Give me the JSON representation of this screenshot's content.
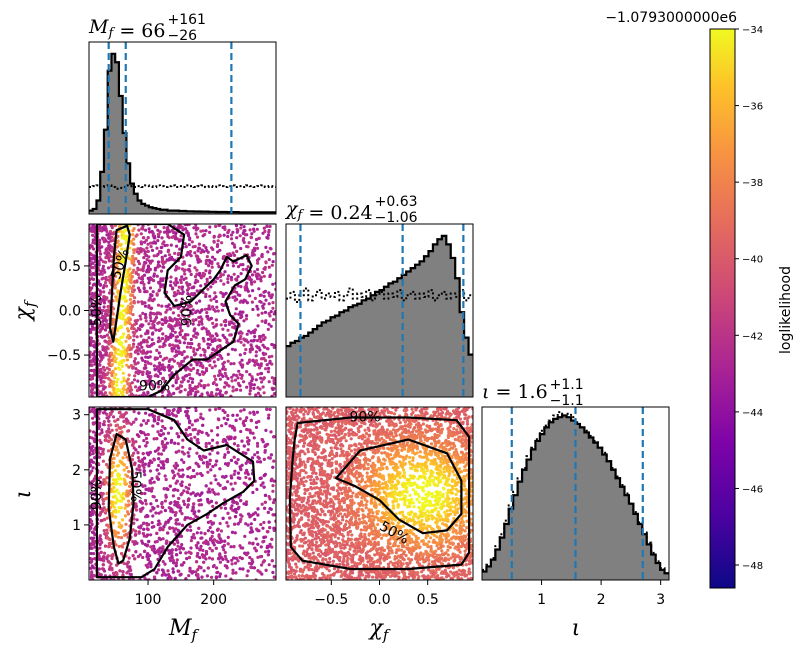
{
  "chart_data": {
    "type": "scatter",
    "description": "corner plot",
    "parameters": [
      {
        "key": "Mf",
        "label": "M_f",
        "range": [
          10,
          295
        ],
        "ticks": [
          100,
          200
        ],
        "tick_labels": [
          "100",
          "200"
        ],
        "title": {
          "name": "M_f",
          "median": "66",
          "plus": "+161",
          "minus": "−26"
        },
        "quantiles": [
          40,
          66,
          227
        ]
      },
      {
        "key": "chif",
        "label": "χ_f",
        "range": [
          -0.97,
          0.97
        ],
        "ticks": [
          -0.5,
          0.0,
          0.5
        ],
        "tick_labels": [
          "−0.5",
          "0.0",
          "0.5"
        ],
        "title": {
          "name": "χ_f",
          "median": "0.24",
          "plus": "+0.63",
          "minus": "−1.06"
        },
        "quantiles": [
          -0.82,
          0.24,
          0.87
        ]
      },
      {
        "key": "iota",
        "label": "ι",
        "range": [
          0,
          3.14
        ],
        "ticks": [
          1,
          2,
          3
        ],
        "tick_labels": [
          "1",
          "2",
          "3"
        ],
        "title": {
          "name": "ι",
          "median": "1.6",
          "plus": "+1.1",
          "minus": "−1.1"
        },
        "quantiles": [
          0.5,
          1.57,
          2.7
        ]
      }
    ],
    "histograms": {
      "Mf": {
        "posterior": [
          0.02,
          0.03,
          0.08,
          0.25,
          0.5,
          0.85,
          0.95,
          0.9,
          0.7,
          0.48,
          0.3,
          0.18,
          0.12,
          0.08,
          0.06,
          0.05,
          0.04,
          0.035,
          0.03,
          0.025,
          0.025,
          0.02,
          0.02,
          0.02,
          0.018,
          0.018,
          0.016,
          0.016,
          0.015,
          0.015,
          0.014,
          0.014,
          0.013,
          0.013,
          0.012,
          0.012,
          0.012,
          0.011,
          0.011,
          0.011,
          0.01,
          0.01,
          0.01,
          0.01,
          0.01,
          0.01,
          0.01,
          0.01,
          0.01,
          0.01
        ],
        "prior": [
          0.16,
          0.165,
          0.17,
          0.16,
          0.165,
          0.17,
          0.16,
          0.15,
          0.155,
          0.16,
          0.17,
          0.165,
          0.16,
          0.165,
          0.16,
          0.17,
          0.165,
          0.16,
          0.17,
          0.165,
          0.16,
          0.165,
          0.17,
          0.16,
          0.165,
          0.16,
          0.17,
          0.165,
          0.16,
          0.165,
          0.17,
          0.16,
          0.165,
          0.16,
          0.17,
          0.165,
          0.16,
          0.165,
          0.17,
          0.16,
          0.165,
          0.16,
          0.17,
          0.165,
          0.16,
          0.165,
          0.17,
          0.16,
          0.165,
          0.16
        ]
      },
      "chif": {
        "posterior": [
          0.3,
          0.32,
          0.33,
          0.35,
          0.36,
          0.38,
          0.4,
          0.42,
          0.44,
          0.45,
          0.47,
          0.48,
          0.5,
          0.51,
          0.53,
          0.54,
          0.55,
          0.57,
          0.58,
          0.6,
          0.62,
          0.63,
          0.65,
          0.67,
          0.68,
          0.7,
          0.72,
          0.74,
          0.76,
          0.78,
          0.8,
          0.83,
          0.86,
          0.9,
          0.93,
          0.95,
          0.9,
          0.82,
          0.7,
          0.5,
          0.35,
          0.25
        ],
        "prior": [
          0.58,
          0.62,
          0.56,
          0.6,
          0.64,
          0.57,
          0.6,
          0.63,
          0.58,
          0.61,
          0.59,
          0.62,
          0.57,
          0.6,
          0.64,
          0.58,
          0.61,
          0.59,
          0.63,
          0.57,
          0.6,
          0.62,
          0.58,
          0.61,
          0.59,
          0.63,
          0.57,
          0.6,
          0.62,
          0.58,
          0.61,
          0.59,
          0.63,
          0.57,
          0.6,
          0.62,
          0.58,
          0.61,
          0.59,
          0.63,
          0.57,
          0.6
        ]
      },
      "iota": {
        "posterior": [
          0.05,
          0.08,
          0.12,
          0.18,
          0.25,
          0.33,
          0.42,
          0.5,
          0.58,
          0.65,
          0.71,
          0.77,
          0.82,
          0.86,
          0.9,
          0.93,
          0.95,
          0.96,
          0.97,
          0.96,
          0.94,
          0.92,
          0.9,
          0.87,
          0.84,
          0.81,
          0.78,
          0.74,
          0.7,
          0.65,
          0.6,
          0.55,
          0.5,
          0.45,
          0.39,
          0.33,
          0.27,
          0.21,
          0.15,
          0.1,
          0.06,
          0.04
        ],
        "prior": [
          0.06,
          0.09,
          0.13,
          0.2,
          0.27,
          0.35,
          0.44,
          0.52,
          0.6,
          0.66,
          0.73,
          0.78,
          0.83,
          0.88,
          0.91,
          0.94,
          0.97,
          0.99,
          0.97,
          0.98,
          0.96,
          0.93,
          0.9,
          0.88,
          0.85,
          0.82,
          0.78,
          0.75,
          0.7,
          0.66,
          0.61,
          0.56,
          0.51,
          0.45,
          0.4,
          0.34,
          0.28,
          0.22,
          0.16,
          0.11,
          0.07,
          0.04
        ]
      }
    },
    "contours": [
      {
        "panel": "Mf_chif",
        "level": "50%",
        "path": [
          [
            52,
            0.9
          ],
          [
            68,
            0.95
          ],
          [
            72,
            0.85
          ],
          [
            66,
            0.55
          ],
          [
            58,
            0.2
          ],
          [
            52,
            -0.1
          ],
          [
            47,
            -0.35
          ],
          [
            42,
            -0.2
          ],
          [
            45,
            0.2
          ],
          [
            48,
            0.6
          ],
          [
            52,
            0.9
          ]
        ]
      },
      {
        "panel": "Mf_chif",
        "level": "90%",
        "path": [
          [
            22,
            -0.97
          ],
          [
            22,
            0.97
          ],
          [
            130,
            0.97
          ],
          [
            155,
            0.85
          ],
          [
            150,
            0.6
          ],
          [
            130,
            0.45
          ],
          [
            125,
            0.2
          ],
          [
            140,
            0.05
          ],
          [
            165,
            0.1
          ],
          [
            200,
            0.35
          ],
          [
            210,
            0.45
          ],
          [
            220,
            0.6
          ],
          [
            230,
            0.55
          ],
          [
            250,
            0.62
          ],
          [
            258,
            0.5
          ],
          [
            248,
            0.35
          ],
          [
            232,
            0.28
          ],
          [
            218,
            0.1
          ],
          [
            225,
            -0.05
          ],
          [
            238,
            -0.15
          ],
          [
            230,
            -0.35
          ],
          [
            210,
            -0.45
          ],
          [
            190,
            -0.55
          ],
          [
            168,
            -0.55
          ],
          [
            140,
            -0.72
          ],
          [
            120,
            -0.9
          ],
          [
            100,
            -0.97
          ],
          [
            22,
            -0.97
          ]
        ]
      },
      {
        "panel": "Mf_iota",
        "level": "50%",
        "path": [
          [
            55,
            0.3
          ],
          [
            48,
            0.6
          ],
          [
            40,
            1.3
          ],
          [
            42,
            2.2
          ],
          [
            52,
            2.65
          ],
          [
            66,
            2.55
          ],
          [
            76,
            2.0
          ],
          [
            78,
            1.4
          ],
          [
            72,
            0.75
          ],
          [
            62,
            0.35
          ],
          [
            55,
            0.3
          ]
        ]
      },
      {
        "panel": "Mf_iota",
        "level": "90%",
        "path": [
          [
            22,
            0.05
          ],
          [
            22,
            3.1
          ],
          [
            100,
            3.1
          ],
          [
            140,
            2.9
          ],
          [
            160,
            2.55
          ],
          [
            185,
            2.35
          ],
          [
            220,
            2.45
          ],
          [
            240,
            2.3
          ],
          [
            260,
            2.15
          ],
          [
            262,
            1.8
          ],
          [
            245,
            1.6
          ],
          [
            215,
            1.4
          ],
          [
            190,
            1.2
          ],
          [
            160,
            1.0
          ],
          [
            130,
            0.6
          ],
          [
            110,
            0.2
          ],
          [
            90,
            0.05
          ],
          [
            22,
            0.05
          ]
        ]
      },
      {
        "panel": "chif_iota",
        "level": "50%",
        "path": [
          [
            -0.45,
            1.85
          ],
          [
            -0.2,
            2.35
          ],
          [
            0.3,
            2.55
          ],
          [
            0.7,
            2.3
          ],
          [
            0.85,
            1.8
          ],
          [
            0.85,
            1.2
          ],
          [
            0.7,
            0.9
          ],
          [
            0.45,
            0.85
          ],
          [
            0.2,
            1.1
          ],
          [
            0,
            1.45
          ],
          [
            -0.25,
            1.7
          ],
          [
            -0.45,
            1.85
          ]
        ]
      },
      {
        "panel": "chif_iota",
        "level": "90%",
        "path": [
          [
            -0.88,
            2.55
          ],
          [
            -0.85,
            2.85
          ],
          [
            -0.3,
            2.95
          ],
          [
            0.3,
            2.95
          ],
          [
            0.8,
            2.9
          ],
          [
            0.93,
            2.6
          ],
          [
            0.93,
            0.5
          ],
          [
            0.85,
            0.28
          ],
          [
            0.3,
            0.2
          ],
          [
            -0.3,
            0.2
          ],
          [
            -0.8,
            0.35
          ],
          [
            -0.92,
            0.6
          ],
          [
            -0.93,
            1.5
          ],
          [
            -0.9,
            2.2
          ],
          [
            -0.88,
            2.55
          ]
        ]
      }
    ],
    "contour_labels": [
      {
        "panel": "Mf_chif",
        "text": "50%",
        "x": 58,
        "y": 0.52,
        "rot": -72
      },
      {
        "panel": "Mf_chif",
        "text": "50%",
        "x": 22,
        "y": -0.0,
        "rot": -90
      },
      {
        "panel": "Mf_chif",
        "text": "90%",
        "x": 160,
        "y": 0.0,
        "rot": -90
      },
      {
        "panel": "Mf_chif",
        "text": "90%",
        "x": 110,
        "y": -0.85,
        "rot": 0
      },
      {
        "panel": "Mf_iota",
        "text": "50%",
        "x": 80,
        "y": 1.7,
        "rot": 90
      },
      {
        "panel": "Mf_iota",
        "text": "90%",
        "x": 22,
        "y": 1.55,
        "rot": -90
      },
      {
        "panel": "chif_iota",
        "text": "90%",
        "x": -0.15,
        "y": 2.95,
        "rot": 0
      },
      {
        "panel": "chif_iota",
        "text": "50%",
        "x": 0.15,
        "y": 0.85,
        "rot": 30
      }
    ],
    "colorbar": {
      "label": "loglikelihood",
      "offset": "−1.0793000000e6",
      "range": [
        -48.6,
        -34
      ],
      "ticks": [
        -48,
        -46,
        -44,
        -42,
        -40,
        -38,
        -36,
        -34
      ],
      "tick_labels": [
        "−48",
        "−46",
        "−44",
        "−42",
        "−40",
        "−38",
        "−36",
        "−34"
      ],
      "colormap": "plasma"
    },
    "colors": {
      "hist_fill": "#808080",
      "quantile_line": "#1f77b4",
      "contour": "#000000"
    }
  }
}
